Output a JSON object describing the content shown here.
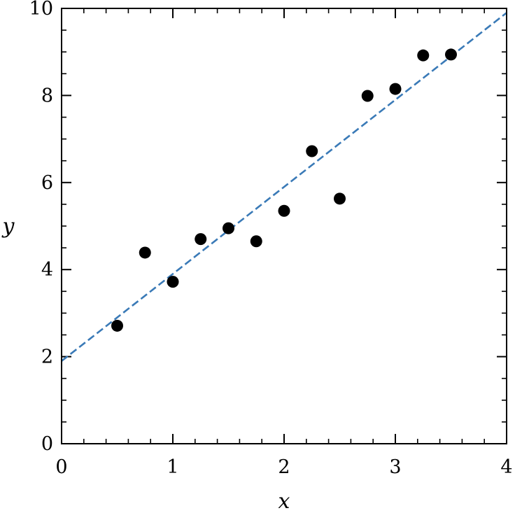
{
  "chart_data": {
    "type": "scatter",
    "title": "",
    "xlabel": "x",
    "ylabel": "y",
    "xlim": [
      0,
      4
    ],
    "ylim": [
      0,
      10
    ],
    "x_ticks": [
      0,
      1,
      2,
      3,
      4
    ],
    "x_tick_labels": [
      "0",
      "1",
      "2",
      "3",
      "4"
    ],
    "y_ticks": [
      0,
      2,
      4,
      6,
      8,
      10
    ],
    "y_tick_labels": [
      "0",
      "2",
      "4",
      "6",
      "8",
      "10"
    ],
    "x_minor_step": 0.2,
    "y_minor_step": 0.5,
    "grid": false,
    "legend": "none",
    "points": {
      "x": [
        0.5,
        0.75,
        1.0,
        1.25,
        1.5,
        1.75,
        2.0,
        2.25,
        2.5,
        2.75,
        3.0,
        3.25,
        3.5
      ],
      "y": [
        2.71,
        4.39,
        3.72,
        4.7,
        4.95,
        4.65,
        5.35,
        6.72,
        5.63,
        7.99,
        8.15,
        8.92,
        8.94
      ],
      "color": "#000000",
      "marker": "circle"
    },
    "fit_line": {
      "intercept": 1.9,
      "slope": 2.0,
      "x_range": [
        0,
        4
      ],
      "style": "dashed",
      "color": "#3a7ab7"
    }
  }
}
